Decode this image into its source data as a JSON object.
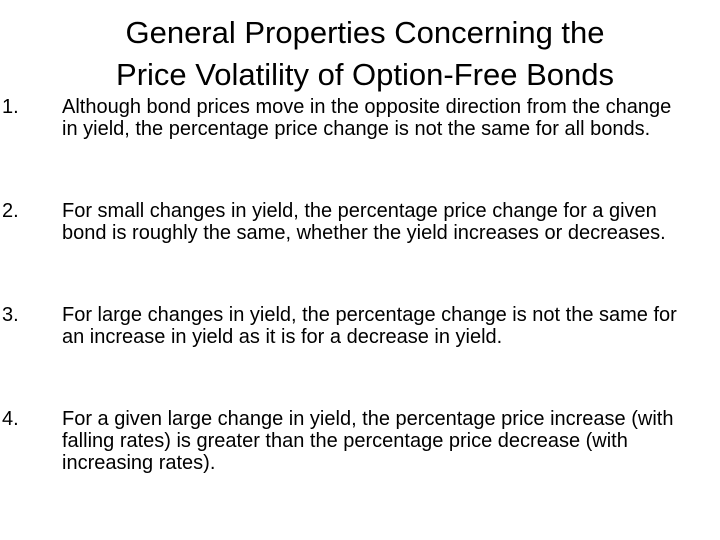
{
  "title": {
    "lines": [
      "General Properties Concerning the",
      "Price Volatility of Option-Free Bonds"
    ]
  },
  "items": [
    {
      "number": "1.",
      "text": "Although bond prices move in the opposite direction from the change in yield, the percentage price change is not the same for all bonds."
    },
    {
      "number": "2.",
      "text": "For small changes in yield, the percentage price change for a given bond is roughly the same, whether the yield increases or decreases."
    },
    {
      "number": "3.",
      "text": "For large changes in yield, the percentage change is not the same for an increase in yield as it is for a decrease in yield."
    },
    {
      "number": "4.",
      "text": "For a given large change in yield, the percentage price increase (with falling rates) is greater than the percentage price decrease (with increasing rates)."
    }
  ]
}
